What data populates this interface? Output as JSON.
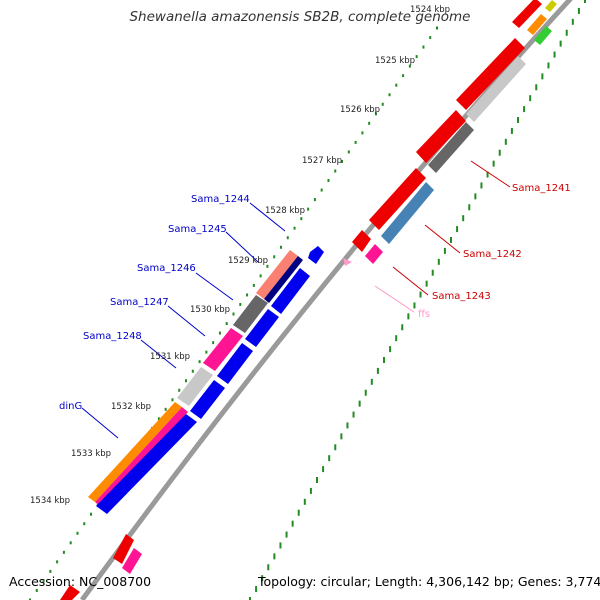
{
  "title": "Shewanella amazonensis SB2B, complete genome",
  "accession_text": "Accession: NC_008700",
  "summary_text": "Topology: circular; Length: 4,306,142 bp; Genes: 3,774",
  "ticks": [
    "1524 kbp",
    "1525 kbp",
    "1526 kbp",
    "1527 kbp",
    "1528 kbp",
    "1529 kbp",
    "1530 kbp",
    "1531 kbp",
    "1532 kbp",
    "1533 kbp",
    "1534 kbp"
  ],
  "forward_genes": [
    {
      "name": "Sama_1241",
      "color": "#cc0000"
    },
    {
      "name": "Sama_1242",
      "color": "#cc0000"
    },
    {
      "name": "Sama_1243",
      "color": "#cc0000"
    },
    {
      "name": "ffs",
      "color": "#ff99cc"
    }
  ],
  "reverse_genes": [
    {
      "name": "Sama_1244",
      "color": "#0000cc"
    },
    {
      "name": "Sama_1245",
      "color": "#0000cc"
    },
    {
      "name": "Sama_1246",
      "color": "#0000cc"
    },
    {
      "name": "Sama_1247",
      "color": "#0000cc"
    },
    {
      "name": "Sama_1248",
      "color": "#0000cc"
    },
    {
      "name": "dinG",
      "color": "#0000cc"
    }
  ],
  "colors": {
    "gene_red": "#ee0000",
    "gene_blue": "#0000ee",
    "cog_gray_light": "#c8c8c8",
    "cog_gray_dark": "#666666",
    "cog_pink": "#ff1493",
    "cog_steelblue": "#4682b4",
    "cog_orange": "#ff8c00",
    "cog_salmon": "#fa8072",
    "cog_navy": "#000080",
    "backbone": "#888888",
    "gc_dots": "#228b22"
  }
}
